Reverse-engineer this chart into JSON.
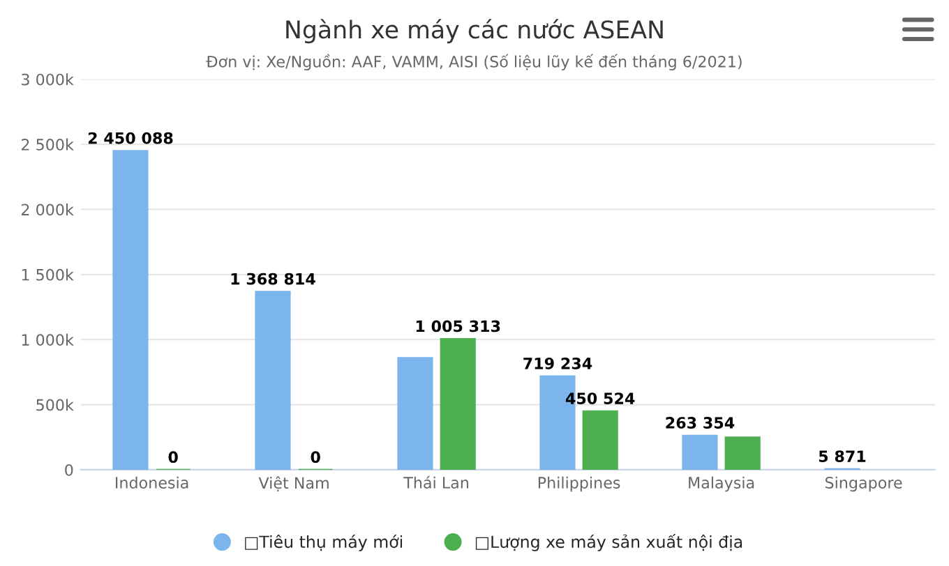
{
  "chart_data": {
    "type": "bar",
    "title": "Ngành xe máy các nước ASEAN",
    "subtitle": "Đơn vị: Xe/Nguồn: AAF, VAMM, AISI (Số liệu lũy kế đến tháng 6/2021)",
    "categories": [
      "Indonesia",
      "Việt Nam",
      "Thái Lan",
      "Philippines",
      "Malaysia",
      "Singapore"
    ],
    "series": [
      {
        "name": "□Tiêu thụ máy mới",
        "color": "#7cb5ec",
        "values": [
          2450088,
          1368814,
          860000,
          719234,
          263354,
          5871
        ],
        "value_labels": [
          "2 450 088",
          "1 368 814",
          null,
          "719 234",
          "263 354",
          "5 871"
        ]
      },
      {
        "name": "□Lượng xe máy sản xuất nội địa",
        "color": "#4caf50",
        "values": [
          0,
          0,
          1005313,
          450524,
          250000,
          null
        ],
        "value_labels": [
          "0",
          "0",
          "1 005 313",
          "450 524",
          null,
          null
        ]
      }
    ],
    "ylim": [
      0,
      3000000
    ],
    "yticks": [
      {
        "value": 0,
        "label": "0"
      },
      {
        "value": 500000,
        "label": "500k"
      },
      {
        "value": 1000000,
        "label": "1 000k"
      },
      {
        "value": 1500000,
        "label": "1 500k"
      },
      {
        "value": 2000000,
        "label": "2 000k"
      },
      {
        "value": 2500000,
        "label": "2 500k"
      },
      {
        "value": 3000000,
        "label": "3 000k"
      }
    ],
    "grid": "y",
    "legend": "bottom"
  }
}
